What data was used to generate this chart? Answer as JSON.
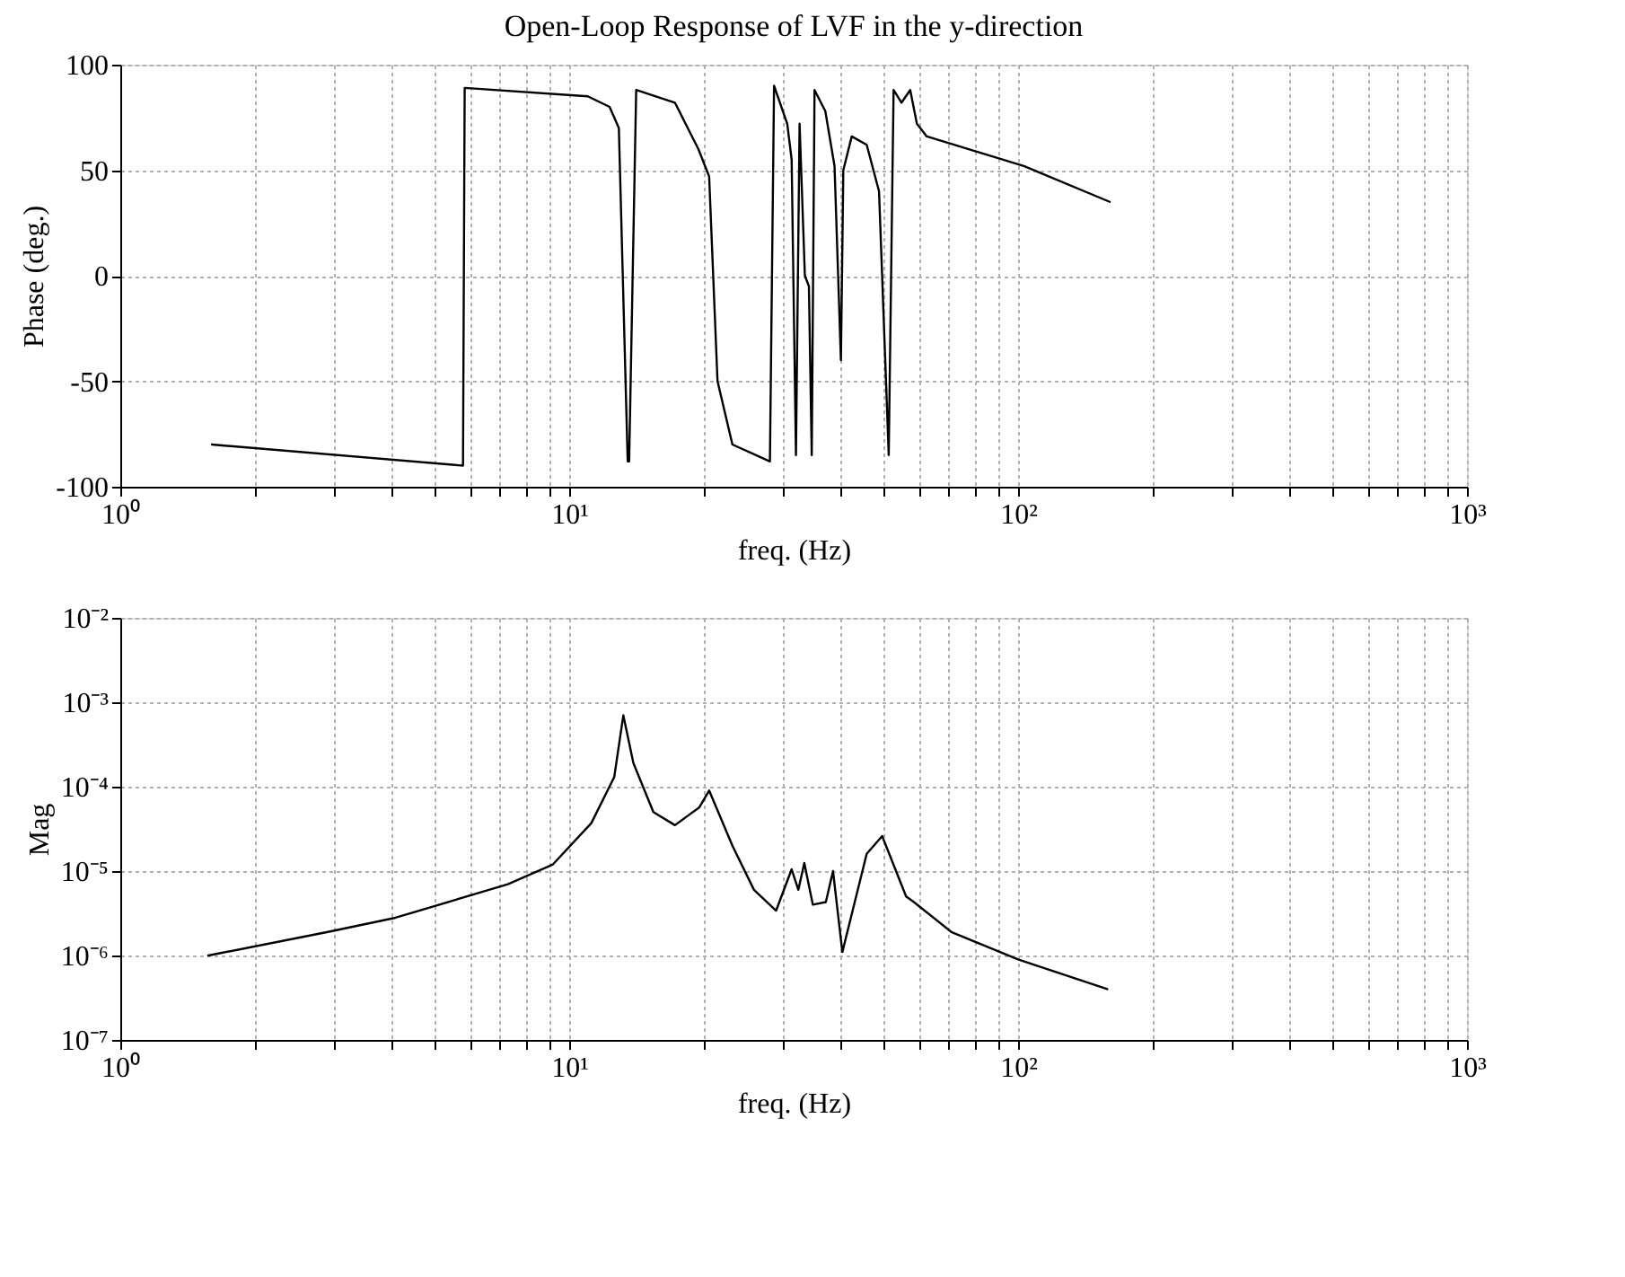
{
  "chart_data": [
    {
      "type": "line",
      "title": "Open-Loop Response of LVF in the y-direction",
      "xlabel": "freq. (Hz)",
      "ylabel": "Phase (deg.)",
      "log": "x",
      "grid": true,
      "line_style": "solid",
      "marker": "none",
      "xlim": [
        1,
        1000
      ],
      "xticks": [
        {
          "value": 1,
          "label": "10⁰"
        },
        {
          "value": 2,
          "label": null
        },
        {
          "value": 3,
          "label": null
        },
        {
          "value": 4,
          "label": null
        },
        {
          "value": 5,
          "label": null
        },
        {
          "value": 6,
          "label": null
        },
        {
          "value": 7,
          "label": null
        },
        {
          "value": 8,
          "label": null
        },
        {
          "value": 9,
          "label": null
        },
        {
          "value": 10,
          "label": "10¹"
        },
        {
          "value": 20,
          "label": null
        },
        {
          "value": 30,
          "label": null
        },
        {
          "value": 40,
          "label": null
        },
        {
          "value": 50,
          "label": null
        },
        {
          "value": 60,
          "label": null
        },
        {
          "value": 70,
          "label": null
        },
        {
          "value": 80,
          "label": null
        },
        {
          "value": 90,
          "label": null
        },
        {
          "value": 100,
          "label": "10²"
        },
        {
          "value": 200,
          "label": null
        },
        {
          "value": 300,
          "label": null
        },
        {
          "value": 400,
          "label": null
        },
        {
          "value": 500,
          "label": null
        },
        {
          "value": 600,
          "label": null
        },
        {
          "value": 700,
          "label": null
        },
        {
          "value": 800,
          "label": null
        },
        {
          "value": 900,
          "label": null
        },
        {
          "value": 1000,
          "label": "10³"
        }
      ],
      "ylim": [
        -100,
        100
      ],
      "yticks": [
        -100,
        -50,
        0,
        50,
        100
      ],
      "series": [
        {
          "color": "#000000",
          "x": [
            1.6,
            5.8,
            5.85,
            11,
            12.3,
            12.9,
            13.5,
            13.6,
            14.1,
            17.2,
            19.4,
            20.5,
            21.4,
            23.1,
            28,
            28.6,
            30.6,
            31.3,
            32.0,
            32.6,
            33.5,
            34.2,
            34.7,
            35.2,
            37.2,
            39,
            40.3,
            40.8,
            42.6,
            46,
            49,
            51.5,
            52.8,
            55,
            57.5,
            59.5,
            62.6,
            103,
            160
          ],
          "values": [
            -80,
            -90,
            89,
            85,
            80,
            70,
            -88,
            -88,
            88,
            82,
            60,
            47,
            -50,
            -80,
            -88,
            90,
            72,
            55,
            -85,
            72,
            0,
            -5,
            -85,
            88,
            78,
            52,
            -40,
            50,
            66,
            62,
            40,
            -85,
            88,
            82,
            88,
            72,
            66,
            52,
            35
          ]
        }
      ]
    },
    {
      "type": "line",
      "xlabel": "freq. (Hz)",
      "ylabel": "Mag",
      "log": "xy",
      "grid": true,
      "line_style": "solid",
      "marker": "none",
      "xlim": [
        1,
        1000
      ],
      "xticks": [
        {
          "value": 1,
          "label": "10⁰"
        },
        {
          "value": 2,
          "label": null
        },
        {
          "value": 3,
          "label": null
        },
        {
          "value": 4,
          "label": null
        },
        {
          "value": 5,
          "label": null
        },
        {
          "value": 6,
          "label": null
        },
        {
          "value": 7,
          "label": null
        },
        {
          "value": 8,
          "label": null
        },
        {
          "value": 9,
          "label": null
        },
        {
          "value": 10,
          "label": "10¹"
        },
        {
          "value": 20,
          "label": null
        },
        {
          "value": 30,
          "label": null
        },
        {
          "value": 40,
          "label": null
        },
        {
          "value": 50,
          "label": null
        },
        {
          "value": 60,
          "label": null
        },
        {
          "value": 70,
          "label": null
        },
        {
          "value": 80,
          "label": null
        },
        {
          "value": 90,
          "label": null
        },
        {
          "value": 100,
          "label": "10²"
        },
        {
          "value": 200,
          "label": null
        },
        {
          "value": 300,
          "label": null
        },
        {
          "value": 400,
          "label": null
        },
        {
          "value": 500,
          "label": null
        },
        {
          "value": 600,
          "label": null
        },
        {
          "value": 700,
          "label": null
        },
        {
          "value": 800,
          "label": null
        },
        {
          "value": 900,
          "label": null
        },
        {
          "value": 1000,
          "label": "10³"
        }
      ],
      "ylim": [
        1e-07,
        0.01
      ],
      "yticks": [
        {
          "value": 1e-07,
          "label": "10⁻⁷"
        },
        {
          "value": 1e-06,
          "label": "10⁻⁶"
        },
        {
          "value": 1e-05,
          "label": "10⁻⁵"
        },
        {
          "value": 0.0001,
          "label": "10⁻⁴"
        },
        {
          "value": 0.001,
          "label": "10⁻³"
        },
        {
          "value": 0.01,
          "label": "10⁻²"
        }
      ],
      "series": [
        {
          "color": "#000000",
          "x": [
            1.57,
            2.9,
            4.1,
            7.3,
            9.2,
            11.2,
            12.6,
            13.2,
            13.9,
            15.4,
            17.2,
            19.5,
            20.5,
            23.1,
            25.8,
            28.9,
            31.3,
            32.4,
            33.4,
            34.9,
            37.3,
            38.7,
            40.6,
            46,
            49.8,
            56.3,
            58.6,
            71,
            100,
            158
          ],
          "values": [
            1e-06,
            1.9e-06,
            2.8e-06,
            7e-06,
            1.2e-05,
            3.7e-05,
            0.00013,
            0.0007,
            0.00019,
            5e-05,
            3.5e-05,
            5.7e-05,
            9e-05,
            2e-05,
            6e-06,
            3.4e-06,
            1.05e-05,
            6e-06,
            1.25e-05,
            4e-06,
            4.3e-06,
            1e-05,
            1.1e-06,
            1.6e-05,
            2.6e-05,
            5e-06,
            4.3e-06,
            1.9e-06,
            9e-07,
            4e-07
          ]
        }
      ]
    }
  ]
}
